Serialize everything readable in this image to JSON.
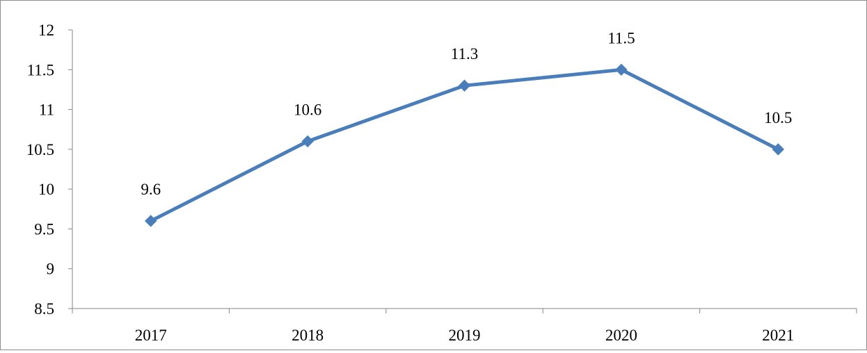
{
  "chart_data": {
    "type": "line",
    "title": "",
    "xlabel": "",
    "ylabel": "",
    "categories": [
      "2017",
      "2018",
      "2019",
      "2020",
      "2021"
    ],
    "series": [
      {
        "values": [
          9.6,
          10.6,
          11.3,
          11.5,
          10.5
        ],
        "data_labels": [
          "9.6",
          "10.6",
          "11.3",
          "11.5",
          "10.5"
        ],
        "color": "#4a7ebb",
        "marker": "diamond"
      }
    ],
    "ylim": [
      8.5,
      12
    ],
    "y_ticks": [
      8.5,
      9,
      9.5,
      10,
      10.5,
      11,
      11.5,
      12
    ],
    "y_tick_labels": [
      "8.5",
      "9",
      "9.5",
      "10",
      "10.5",
      "11",
      "11.5",
      "12"
    ],
    "grid": false,
    "legend": "none"
  }
}
